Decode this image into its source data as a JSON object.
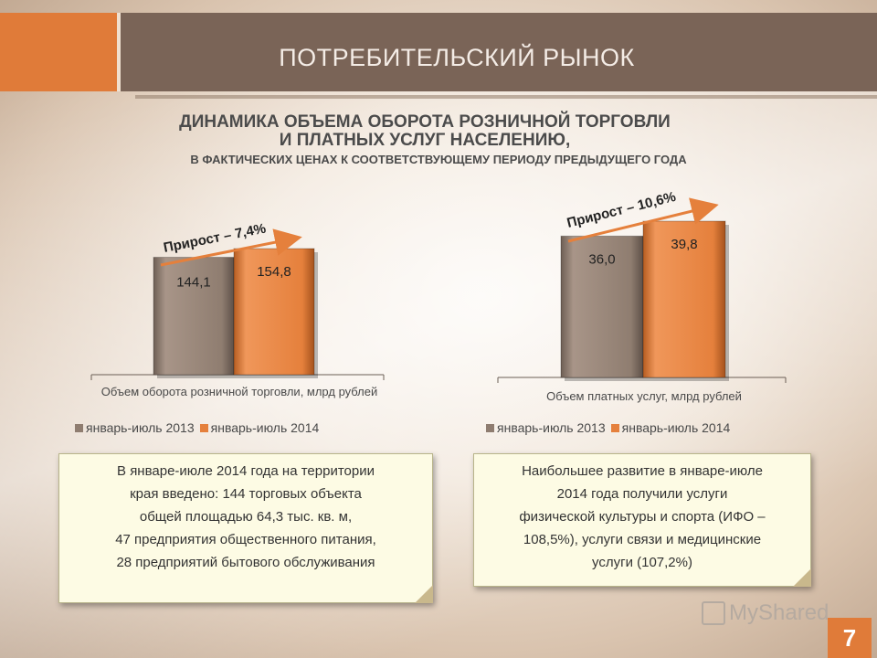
{
  "slide": {
    "title": "ПОТРЕБИТЕЛЬСКИЙ РЫНОК",
    "subtitle_line1": "ДИНАМИКА ОБЪЕМА ОБОРОТА РОЗНИЧНОЙ ТОРГОВЛИ",
    "subtitle_line2": "И ПЛАТНЫХ УСЛУГ НАСЕЛЕНИЮ,",
    "subtitle_line3": "В ФАКТИЧЕСКИХ ЦЕНАХ К СООТВЕТСТВУЮЩЕМУ ПЕРИОДУ ПРЕДЫДУЩЕГО ГОДА",
    "page_number": "7",
    "watermark": "MyShared"
  },
  "colors": {
    "bar_2013": "#8f7d70",
    "bar_2014": "#e5803c",
    "accent": "#e07b39",
    "header": "#7a6457"
  },
  "chart_data": [
    {
      "type": "bar",
      "categories": [
        "Объем оборота розничной торговли, млрд рублей"
      ],
      "xlabel": "Объем оборота розничной торговли, млрд рублей",
      "series": [
        {
          "name": "январь-июль 2013",
          "values": [
            144.1
          ],
          "label": "144,1"
        },
        {
          "name": "январь-июль 2014",
          "values": [
            154.8
          ],
          "label": "154,8"
        }
      ],
      "growth_annotation": "Прирост – 7,4%",
      "legend": [
        "январь-июль 2013",
        "январь-июль 2014"
      ]
    },
    {
      "type": "bar",
      "categories": [
        "Объем платных услуг, млрд рублей"
      ],
      "xlabel": "Объем платных услуг, млрд рублей",
      "series": [
        {
          "name": "январь-июль 2013",
          "values": [
            36.0
          ],
          "label": "36,0"
        },
        {
          "name": "январь-июль 2014",
          "values": [
            39.8
          ],
          "label": "39,8"
        }
      ],
      "growth_annotation": "Прирост – 10,6%",
      "legend": [
        "январь-июль 2013",
        "январь-июль 2014"
      ]
    }
  ],
  "notes": {
    "left": [
      "В январе-июле 2014 года на территории",
      "края введено: 144 торговых объекта",
      "общей площадью 64,3 тыс. кв. м,",
      "47 предприятия общественного питания,",
      "28 предприятий бытового обслуживания"
    ],
    "right": [
      "Наибольшее развитие в январе-июле",
      "2014 года получили услуги",
      "физической культуры и спорта (ИФО –",
      "108,5%), услуги связи и медицинские",
      "услуги (107,2%)"
    ]
  }
}
